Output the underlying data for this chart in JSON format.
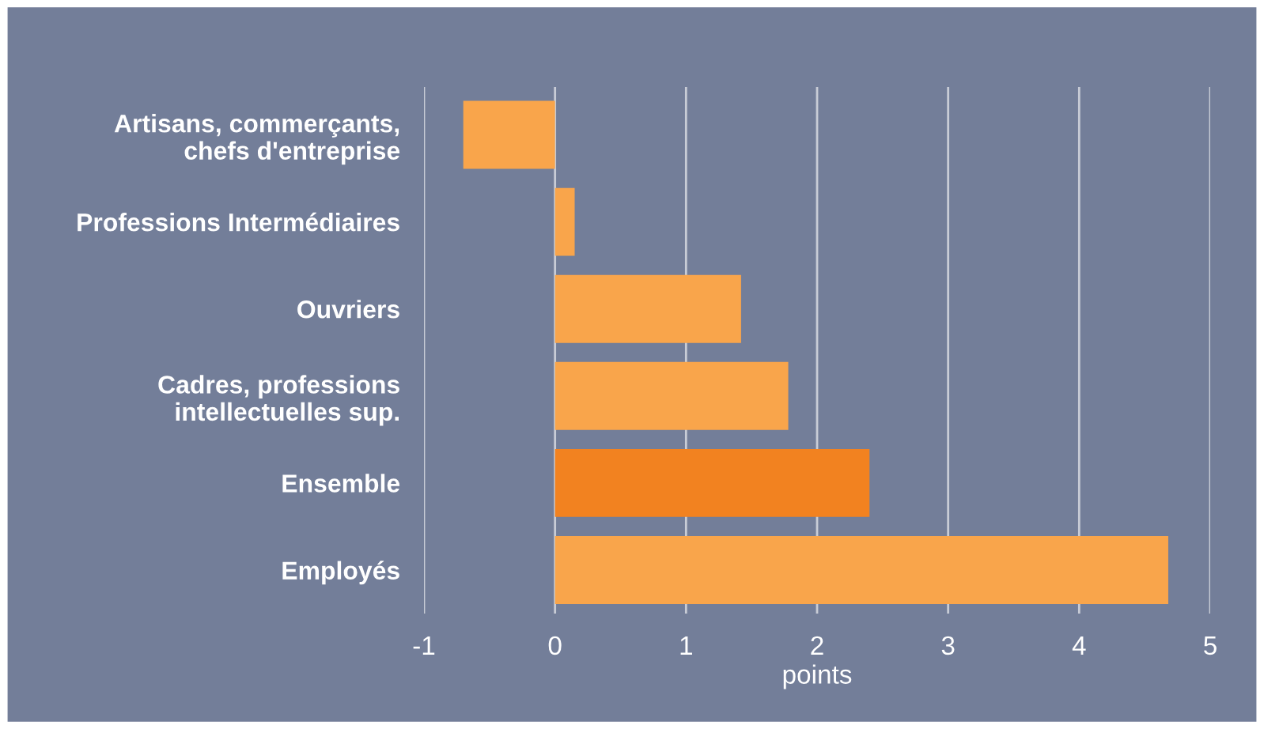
{
  "chart_data": {
    "type": "bar",
    "orientation": "horizontal",
    "xlabel": "points",
    "categories": [
      "Artisans, commerçants,\nchefs d'entreprise",
      "Professions Intermédiaires",
      "Ouvriers",
      "Cadres, professions\nintellectuelles sup.",
      "Ensemble",
      "Employés"
    ],
    "values": [
      -0.7,
      0.15,
      1.42,
      1.78,
      2.4,
      4.68
    ],
    "colors": [
      "#f9a54b",
      "#f9a54b",
      "#f9a54b",
      "#f9a54b",
      "#f28220",
      "#f9a54b"
    ],
    "xlim": [
      -1,
      5
    ],
    "xticks": [
      -1,
      0,
      1,
      2,
      3,
      4,
      5
    ],
    "grid": "x"
  }
}
